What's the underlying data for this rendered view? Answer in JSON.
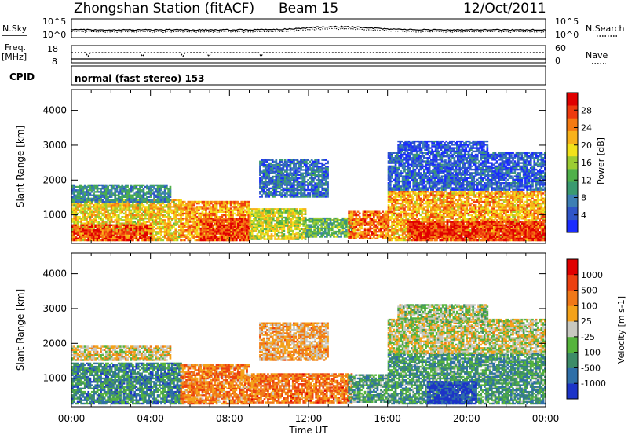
{
  "header": {
    "station": "Zhongshan Station (fitACF)",
    "beam": "Beam 15",
    "date": "12/Oct/2011"
  },
  "top_panels": {
    "nsky_label": "N.Sky",
    "nsearch_label": "N.Search",
    "nsky_ticks": [
      "10^5",
      "10^0"
    ],
    "nsearch_ticks": [
      "10^5",
      "10^0"
    ],
    "freq_label": "Freq.",
    "freq_unit": "[MHz]",
    "freq_ticks": [
      "18",
      "8"
    ],
    "nave_label": "Nave",
    "nave_ticks": [
      "60",
      "0"
    ],
    "cpid_label": "CPID",
    "cpid_text": "normal (fast stereo) 153"
  },
  "chart_data": [
    {
      "type": "heatmap",
      "name": "power",
      "ylabel": "Slant Range [km]",
      "xlabel": "Time UT",
      "x_ticks": [
        "00:00",
        "04:00",
        "08:00",
        "12:00",
        "16:00",
        "20:00",
        "00:00"
      ],
      "x_range_hours": [
        0,
        24
      ],
      "y_ticks": [
        1000,
        2000,
        3000,
        4000
      ],
      "ylim": [
        180,
        4600
      ],
      "colorbar": {
        "label": "Power [dB]",
        "ticks": [
          "4",
          "8",
          "12",
          "16",
          "20",
          "24",
          "28"
        ],
        "colors": [
          "#1a2cff",
          "#2f55c8",
          "#3d7fb4",
          "#3a9a70",
          "#4fb04a",
          "#9ccc32",
          "#f2e21a",
          "#f8b21a",
          "#f57a12",
          "#ee3a0e",
          "#e00000"
        ]
      },
      "regions": [
        {
          "t0": 0.0,
          "t1": 5.5,
          "r0": 250,
          "r1": 1450,
          "v": 0.62
        },
        {
          "t0": 0.0,
          "t1": 5.0,
          "r0": 1350,
          "r1": 1850,
          "v": 0.28
        },
        {
          "t0": 0.0,
          "t1": 4.0,
          "r0": 250,
          "r1": 700,
          "v": 0.85
        },
        {
          "t0": 5.5,
          "t1": 9.0,
          "r0": 250,
          "r1": 1400,
          "v": 0.72
        },
        {
          "t0": 6.5,
          "t1": 9.0,
          "r0": 250,
          "r1": 900,
          "v": 0.88
        },
        {
          "t0": 9.0,
          "t1": 11.8,
          "r0": 280,
          "r1": 1150,
          "v": 0.55
        },
        {
          "t0": 9.5,
          "t1": 13.0,
          "r0": 1500,
          "r1": 2600,
          "v": 0.2
        },
        {
          "t0": 11.8,
          "t1": 14.2,
          "r0": 350,
          "r1": 900,
          "v": 0.4
        },
        {
          "t0": 14.0,
          "t1": 16.0,
          "r0": 300,
          "r1": 1100,
          "v": 0.78
        },
        {
          "t0": 16.0,
          "t1": 24.0,
          "r0": 250,
          "r1": 1650,
          "v": 0.7
        },
        {
          "t0": 17.0,
          "t1": 24.0,
          "r0": 250,
          "r1": 800,
          "v": 0.9
        },
        {
          "t0": 16.0,
          "t1": 24.0,
          "r0": 1700,
          "r1": 2800,
          "v": 0.15
        },
        {
          "t0": 16.5,
          "t1": 21.0,
          "r0": 2800,
          "r1": 3100,
          "v": 0.12
        }
      ]
    },
    {
      "type": "heatmap",
      "name": "velocity",
      "ylabel": "Slant Range [km]",
      "xlabel": "Time UT",
      "x_ticks": [
        "00:00",
        "04:00",
        "08:00",
        "12:00",
        "16:00",
        "20:00",
        "00:00"
      ],
      "x_range_hours": [
        0,
        24
      ],
      "y_ticks": [
        1000,
        2000,
        3000,
        4000
      ],
      "ylim": [
        180,
        4600
      ],
      "colorbar": {
        "label": "Velocity [m s-1]",
        "ticks": [
          "1000",
          "500",
          "100",
          "25",
          "-25",
          "-100",
          "-500",
          "-1000"
        ],
        "colors": [
          "#1c34c8",
          "#2f6fa8",
          "#3d8c68",
          "#55b43c",
          "#c8c8c0",
          "#f4a21a",
          "#f07818",
          "#ec4010",
          "#e00000"
        ]
      },
      "regions": [
        {
          "t0": 0.0,
          "t1": 5.5,
          "r0": 250,
          "r1": 1450,
          "v": 0.25
        },
        {
          "t0": 0.0,
          "t1": 5.0,
          "r0": 1500,
          "r1": 1900,
          "v": 0.55
        },
        {
          "t0": 5.5,
          "t1": 9.0,
          "r0": 250,
          "r1": 1400,
          "v": 0.7
        },
        {
          "t0": 9.0,
          "t1": 14.2,
          "r0": 280,
          "r1": 1100,
          "v": 0.72
        },
        {
          "t0": 9.5,
          "t1": 13.0,
          "r0": 1500,
          "r1": 2600,
          "v": 0.62
        },
        {
          "t0": 14.0,
          "t1": 16.0,
          "r0": 300,
          "r1": 1100,
          "v": 0.3
        },
        {
          "t0": 16.0,
          "t1": 24.0,
          "r0": 250,
          "r1": 1700,
          "v": 0.3
        },
        {
          "t0": 18.0,
          "t1": 20.5,
          "r0": 250,
          "r1": 900,
          "v": 0.05
        },
        {
          "t0": 16.0,
          "t1": 24.0,
          "r0": 1700,
          "r1": 2700,
          "v": 0.5
        },
        {
          "t0": 16.5,
          "t1": 21.0,
          "r0": 2600,
          "r1": 3100,
          "v": 0.45
        }
      ]
    }
  ]
}
